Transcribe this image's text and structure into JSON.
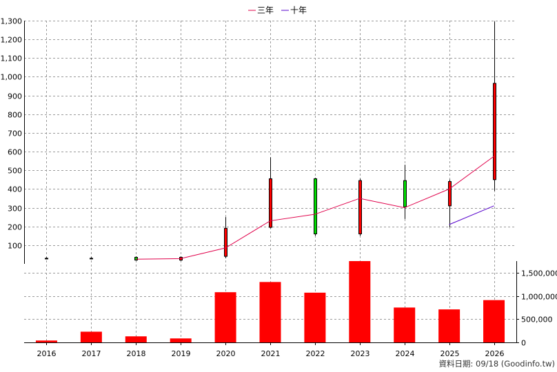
{
  "chart_data": {
    "type": "candlestick",
    "legend": [
      {
        "name": "三年",
        "color": "#e0004a"
      },
      {
        "name": "十年",
        "color": "#5500cc"
      }
    ],
    "footer": "資料日期: 09/18  (Goodinfo.tw)",
    "categories": [
      "2016",
      "2017",
      "2018",
      "2019",
      "2020",
      "2021",
      "2022",
      "2023",
      "2024",
      "2025",
      "2026"
    ],
    "price_axis": {
      "min": 0,
      "max": 1300,
      "ticks": [
        100,
        200,
        300,
        400,
        500,
        600,
        700,
        800,
        900,
        1000,
        1100,
        1200,
        1300
      ],
      "tick_labels": [
        "100",
        "200",
        "300",
        "400",
        "500",
        "600",
        "700",
        "800",
        "900",
        "1,000",
        "1,100",
        "1,200",
        "1,300"
      ]
    },
    "volume_axis": {
      "min": 0,
      "max": 1750000,
      "ticks": [
        0,
        500000,
        1000000,
        1500000
      ],
      "tick_labels": [
        "0",
        "500,000",
        "1,000,000",
        "1,500,000"
      ]
    },
    "candles": [
      {
        "open": 30,
        "close": 30,
        "high": 36,
        "low": 24,
        "color": "#000000"
      },
      {
        "open": 30,
        "close": 30,
        "high": 36,
        "low": 24,
        "color": "#000000"
      },
      {
        "open": 20,
        "close": 35,
        "high": 40,
        "low": 17,
        "color": "#00dd00"
      },
      {
        "open": 35,
        "close": 20,
        "high": 40,
        "low": 15,
        "color": "#ff0000"
      },
      {
        "open": 40,
        "close": 190,
        "high": 250,
        "low": 30,
        "color": "#ff0000"
      },
      {
        "open": 195,
        "close": 455,
        "high": 570,
        "low": 190,
        "color": "#ff0000"
      },
      {
        "open": 455,
        "close": 160,
        "high": 460,
        "low": 150,
        "color": "#00dd00"
      },
      {
        "open": 160,
        "close": 445,
        "high": 455,
        "low": 150,
        "color": "#ff0000"
      },
      {
        "open": 445,
        "close": 305,
        "high": 530,
        "low": 240,
        "color": "#00dd00"
      },
      {
        "open": 310,
        "close": 440,
        "high": 450,
        "low": 195,
        "color": "#ff0000"
      },
      {
        "open": 450,
        "close": 965,
        "high": 1295,
        "low": 390,
        "color": "#ff0000"
      }
    ],
    "series": [
      {
        "name": "三年",
        "values": [
          null,
          null,
          25,
          28,
          85,
          230,
          265,
          350,
          300,
          400,
          575
        ]
      },
      {
        "name": "十年",
        "values": [
          null,
          null,
          null,
          null,
          null,
          null,
          null,
          null,
          null,
          210,
          310
        ]
      }
    ],
    "volume": [
      40000,
      230000,
      130000,
      85000,
      1080000,
      1300000,
      1070000,
      1750000,
      750000,
      710000,
      910000
    ],
    "volume_color": "#ff0000"
  }
}
